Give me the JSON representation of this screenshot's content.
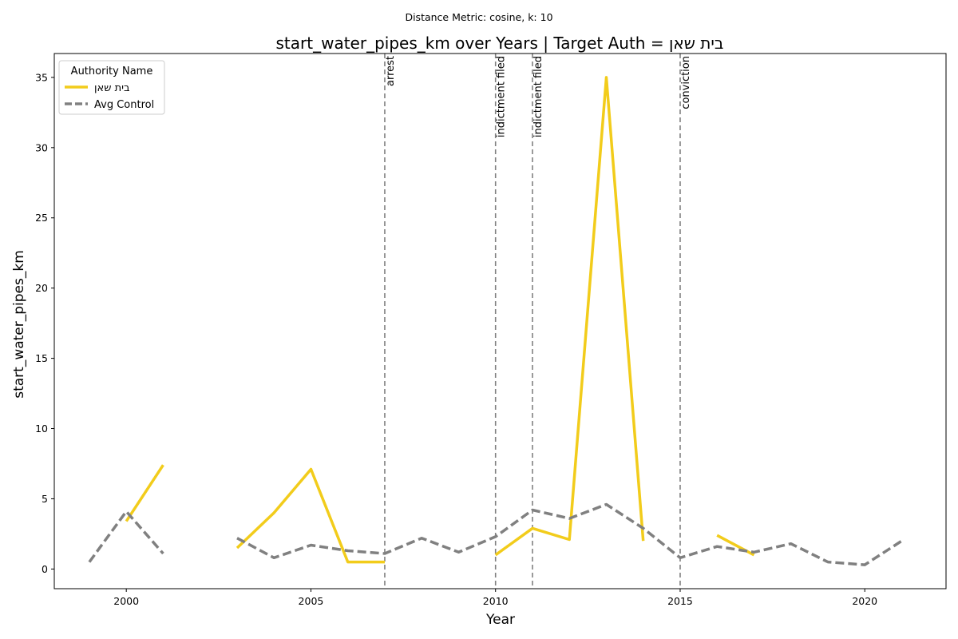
{
  "chart_data": {
    "type": "line",
    "suptitle": "Distance Metric: cosine, k: 10",
    "title": "start_water_pipes_km over Years | Target Auth = בית שאן",
    "xlabel": "Year",
    "ylabel": "start_water_pipes_km",
    "xlim": [
      1998.05,
      2022.2
    ],
    "ylim": [
      -1.4,
      36.7
    ],
    "xticks": [
      2000,
      2005,
      2010,
      2015,
      2020
    ],
    "yticks": [
      0,
      5,
      10,
      15,
      20,
      25,
      30,
      35
    ],
    "grid": false,
    "legend": {
      "title": "Authority Name",
      "placement": "top-left"
    },
    "series": [
      {
        "name": "בית שאן",
        "color": "#f2cc1b",
        "style": "solid",
        "x": [
          1999,
          2000,
          2001,
          2002,
          2003,
          2004,
          2005,
          2006,
          2007,
          2008,
          2009,
          2010,
          2011,
          2012,
          2013,
          2014,
          2015,
          2016,
          2017,
          2018,
          2019,
          2020,
          2021
        ],
        "y": [
          null,
          3.4,
          7.4,
          null,
          1.5,
          4.0,
          7.1,
          0.5,
          0.5,
          null,
          null,
          1.0,
          2.9,
          2.1,
          35.0,
          2.0,
          null,
          2.4,
          1.0,
          null,
          null,
          null,
          null
        ]
      },
      {
        "name": "Avg Control",
        "color": "#808080",
        "style": "dashed",
        "x": [
          1999,
          2000,
          2001,
          2002,
          2003,
          2004,
          2005,
          2006,
          2007,
          2008,
          2009,
          2010,
          2011,
          2012,
          2013,
          2014,
          2015,
          2016,
          2017,
          2018,
          2019,
          2020,
          2021
        ],
        "y": [
          0.5,
          4.1,
          1.1,
          null,
          2.2,
          0.8,
          1.7,
          1.3,
          1.1,
          2.2,
          1.2,
          2.3,
          4.2,
          3.6,
          4.6,
          2.9,
          0.8,
          1.6,
          1.2,
          1.8,
          0.5,
          0.3,
          2.0
        ]
      }
    ],
    "events": [
      {
        "x": 2007,
        "label": "arrest"
      },
      {
        "x": 2010,
        "label": "indictment filed"
      },
      {
        "x": 2011,
        "label": "indictment filed"
      },
      {
        "x": 2015,
        "label": "conviction"
      }
    ]
  }
}
